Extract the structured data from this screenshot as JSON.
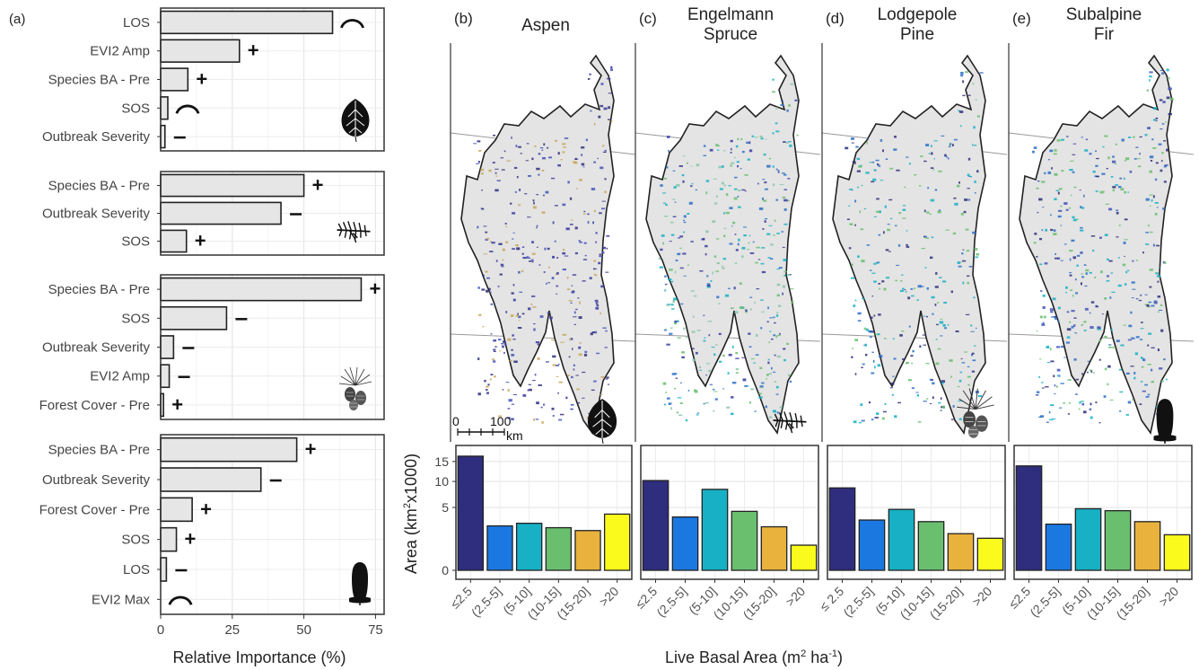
{
  "panel_a": {
    "label": "(a)",
    "xlabel": "Relative Importance (%)",
    "xticks": [
      "0",
      "25",
      "50",
      "75"
    ],
    "xlim": [
      0,
      78
    ]
  },
  "chart_data": [
    {
      "type": "bar",
      "orientation": "horizontal",
      "species": "Aspen",
      "species_icon": "aspen-leaf-icon",
      "categories": [
        "LOS",
        "EVI2 Amp",
        "Species BA - Pre",
        "SOS",
        "Outbreak Severity"
      ],
      "values": [
        60,
        27.5,
        9.5,
        2.5,
        1.5
      ],
      "effects": [
        "hump",
        "+",
        "+",
        "hump",
        "−"
      ],
      "xlim": [
        0,
        78
      ]
    },
    {
      "type": "bar",
      "orientation": "horizontal",
      "species": "Engelmann Spruce",
      "species_icon": "spruce-branch-icon",
      "categories": [
        "Species BA - Pre",
        "Outbreak Severity",
        "SOS"
      ],
      "values": [
        50,
        42,
        9
      ],
      "effects": [
        "+",
        "−",
        "+"
      ],
      "xlim": [
        0,
        78
      ]
    },
    {
      "type": "bar",
      "orientation": "horizontal",
      "species": "Lodgepole Pine",
      "species_icon": "pine-cone-icon",
      "categories": [
        "Species BA - Pre",
        "SOS",
        "Outbreak Severity",
        "EVI2 Amp",
        "Forest Cover - Pre"
      ],
      "values": [
        70,
        23,
        4.5,
        3,
        1
      ],
      "effects": [
        "+",
        "−",
        "−",
        "−",
        "+"
      ],
      "xlim": [
        0,
        78
      ]
    },
    {
      "type": "bar",
      "orientation": "horizontal",
      "species": "Subalpine Fir",
      "species_icon": "fir-cone-icon",
      "categories": [
        "Species BA - Pre",
        "Outbreak Severity",
        "Forest Cover - Pre",
        "SOS",
        "LOS",
        "EVI2 Max"
      ],
      "values": [
        47.5,
        35,
        11,
        5.5,
        2,
        0
      ],
      "effects": [
        "+",
        "−",
        "+",
        "+",
        "−",
        "hump"
      ],
      "xlim": [
        0,
        78
      ]
    },
    {
      "type": "bar",
      "panel": "(b)",
      "title": "Aspen",
      "categories": [
        "≤2.5",
        "(2.5-5]",
        "(5-10]",
        "(10-15]",
        "(15-20]",
        ">20"
      ],
      "values": [
        16.5,
        2.5,
        2.8,
        2.3,
        2.0,
        4.0
      ],
      "colors": [
        "#2e2d7e",
        "#1b78e0",
        "#17b0c4",
        "#6abf6e",
        "#e8b23d",
        "#fafa1c"
      ]
    },
    {
      "type": "bar",
      "panel": "(c)",
      "title": "Engelmann\nSpruce",
      "categories": [
        "≤2.5",
        "(2.5-5]",
        "(5-10]",
        "(10-15]",
        "(15-20]",
        ">20"
      ],
      "values": [
        10.2,
        3.6,
        8.3,
        4.4,
        2.4,
        0.8
      ],
      "colors": [
        "#2e2d7e",
        "#1b78e0",
        "#17b0c4",
        "#6abf6e",
        "#e8b23d",
        "#fafa1c"
      ]
    },
    {
      "type": "bar",
      "panel": "(d)",
      "title": "Lodgepole\nPine",
      "categories": [
        "≤ 2.5",
        "(2.5-5]",
        "(5-10]",
        "(10-15]",
        "(15-20]",
        ">20"
      ],
      "values": [
        8.6,
        3.2,
        4.7,
        3.0,
        1.7,
        1.3
      ],
      "colors": [
        "#2e2d7e",
        "#1b78e0",
        "#17b0c4",
        "#6abf6e",
        "#e8b23d",
        "#fafa1c"
      ]
    },
    {
      "type": "bar",
      "panel": "(e)",
      "title": "Subalpine\nFir",
      "categories": [
        "≤2.5",
        "(2.5-5]",
        "(5-10]",
        "(10-15]",
        "(15-20]",
        ">20"
      ],
      "values": [
        13.8,
        2.7,
        4.8,
        4.5,
        3.0,
        1.6
      ],
      "colors": [
        "#2e2d7e",
        "#1b78e0",
        "#17b0c4",
        "#6abf6e",
        "#e8b23d",
        "#fafa1c"
      ]
    }
  ],
  "histogram_axis": {
    "ylabel": "Area (km² x1000)",
    "ylabel_main": "Area (km",
    "ylabel_sup": "2",
    "ylabel_tail": "x1000)",
    "yticks": [
      "0",
      "5",
      "10",
      "15"
    ],
    "ytick_values": [
      0,
      5,
      10,
      15
    ],
    "ylim": [
      0,
      17
    ],
    "scale": "sqrt",
    "xlabel_main": "Live Basal Area (m",
    "xlabel_sup1": "2",
    "xlabel_mid": " ha",
    "xlabel_sup2": "-1",
    "xlabel_tail": ")"
  },
  "map": {
    "scale_zero": "0",
    "scale_hundred": "100",
    "scale_unit": "km",
    "background": "#e4e4e4",
    "outline": "#222222"
  }
}
